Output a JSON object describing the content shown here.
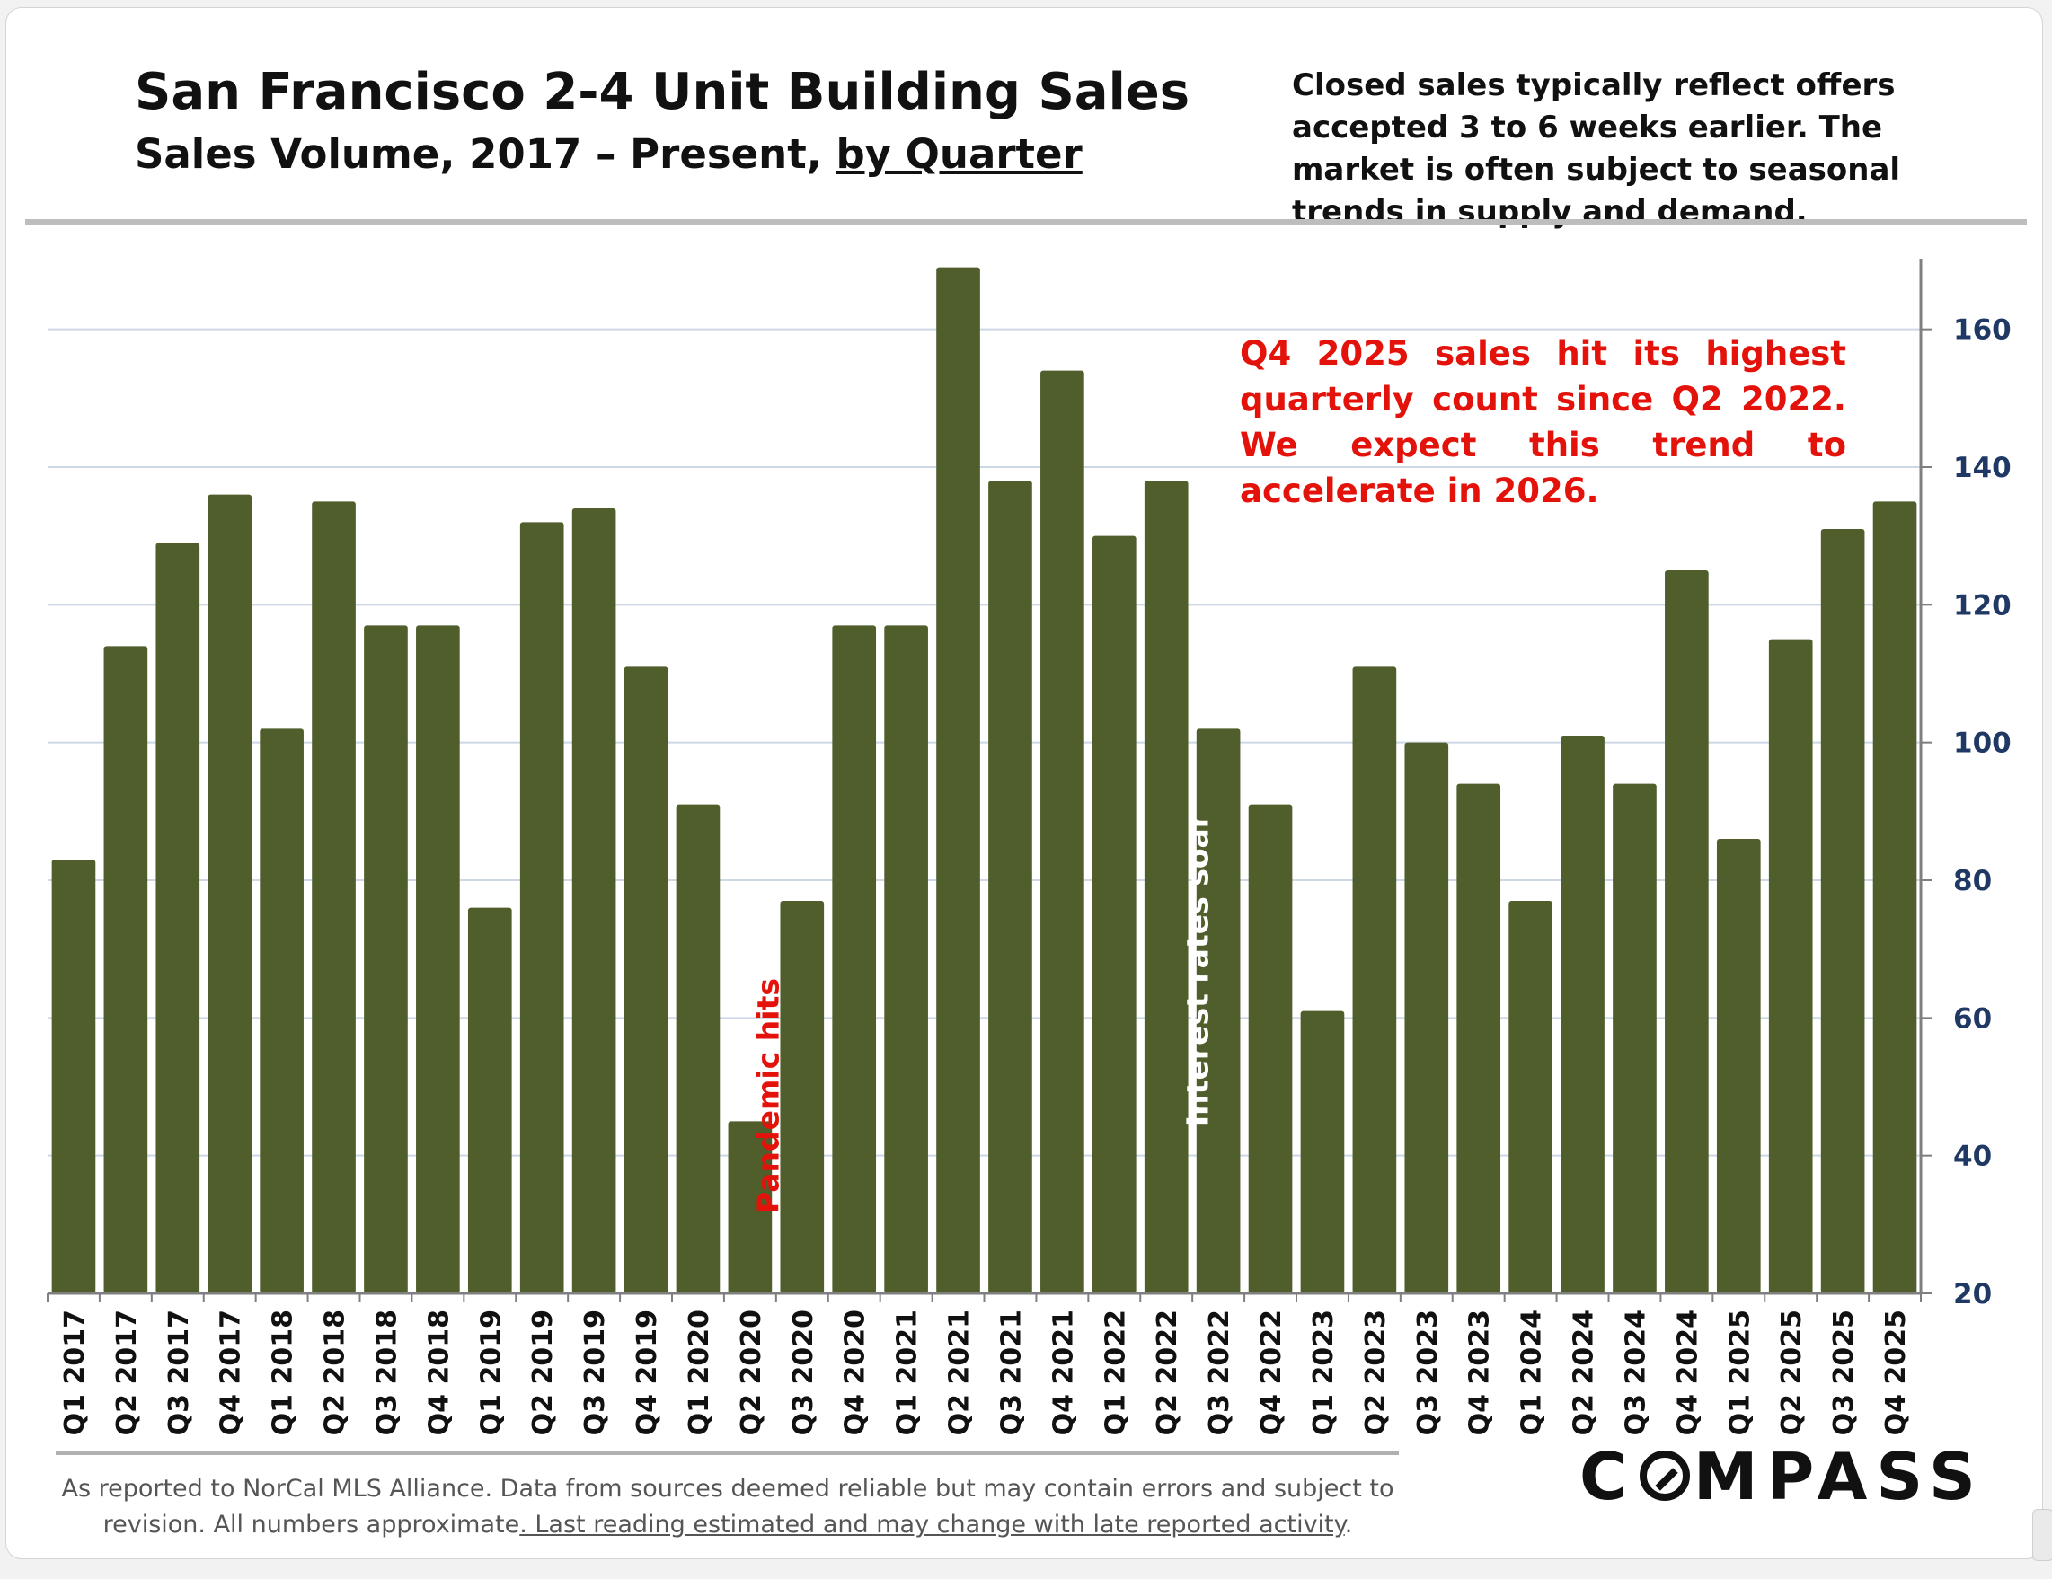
{
  "header": {
    "title": "San Francisco 2-4 Unit Building Sales",
    "subtitle_main": "Sales Volume, 2017 – Present, ",
    "subtitle_emph": "by Quarter",
    "note": "Closed sales typically reflect offers accepted 3 to 6 weeks earlier. The market is often subject to seasonal trends in supply and demand."
  },
  "annotations": {
    "callout": "Q4 2025 sales hit its highest quarterly count since Q2 2022. We expect this trend to accelerate in 2026.",
    "pandemic": "Pandemic hits",
    "rates": "Interest rates soar"
  },
  "footer": {
    "line1": "As reported to NorCal MLS Alliance. Data from sources deemed reliable but may contain errors and subject to",
    "line2_plain": "revision. All numbers approximate",
    "line2_underlined": ". Last reading estimated and may change with late reported activity",
    "line2_end": "."
  },
  "logo": {
    "before": "C",
    "after": "MPASS"
  },
  "colors": {
    "bar": "#4f5e2a",
    "accent_red": "#e3120b",
    "axis_text": "#1f3864",
    "grid": "#cdd7e6"
  },
  "chart_data": {
    "type": "bar",
    "categories": [
      "Q1 2017",
      "Q2 2017",
      "Q3 2017",
      "Q4 2017",
      "Q1 2018",
      "Q2 2018",
      "Q3 2018",
      "Q4 2018",
      "Q1 2019",
      "Q2 2019",
      "Q3 2019",
      "Q4 2019",
      "Q1 2020",
      "Q2 2020",
      "Q3 2020",
      "Q4 2020",
      "Q1 2021",
      "Q2 2021",
      "Q3 2021",
      "Q4 2021",
      "Q1 2022",
      "Q2 2022",
      "Q3 2022",
      "Q4 2022",
      "Q1 2023",
      "Q2 2023",
      "Q3 2023",
      "Q4 2023",
      "Q1 2024",
      "Q2 2024",
      "Q3 2024",
      "Q4 2024",
      "Q1 2025",
      "Q2 2025",
      "Q3 2025",
      "Q4 2025"
    ],
    "values": [
      83,
      114,
      129,
      136,
      102,
      135,
      117,
      117,
      76,
      132,
      134,
      111,
      91,
      45,
      77,
      117,
      117,
      169,
      138,
      154,
      130,
      138,
      102,
      91,
      61,
      111,
      100,
      94,
      77,
      101,
      94,
      125,
      86,
      115,
      131,
      135
    ],
    "ylim": [
      20,
      170
    ],
    "yticks": [
      20,
      40,
      60,
      80,
      100,
      120,
      140,
      160
    ],
    "y_axis_side": "right",
    "grid": true,
    "legend": "none"
  }
}
